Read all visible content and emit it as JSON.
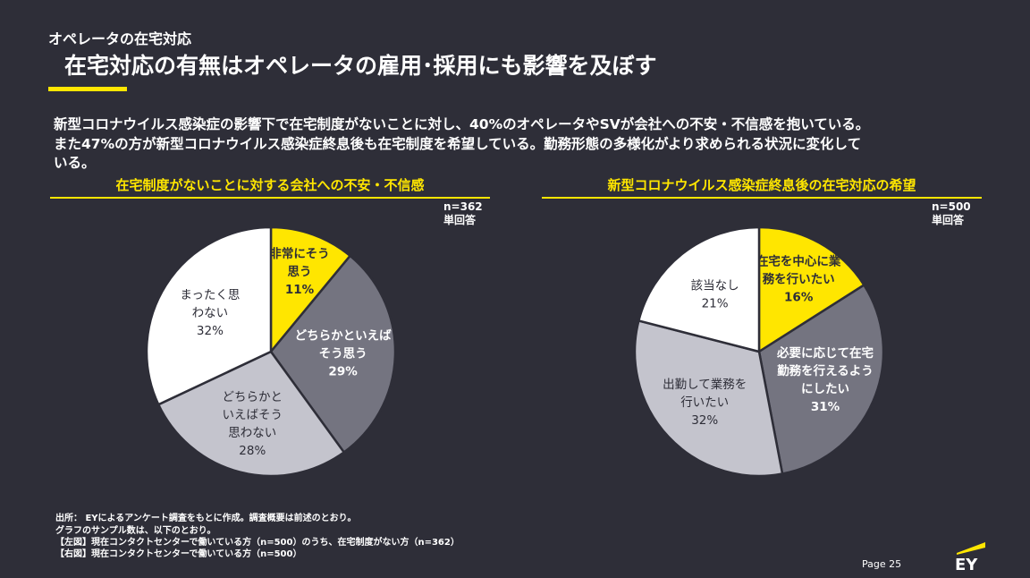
{
  "header": {
    "section_label": "オペレータの在宅対応",
    "title": "在宅対応の有無はオペレータの雇用･採用にも影響を及ぼす"
  },
  "summary": [
    "新型コロナウイルス感染症の影響下で在宅制度がないことに対し、40%のオペレータやSVが会社への不安・不信感を抱いている。",
    "また47%の方が新型コロナウイルス感染症終息後も在宅制度を希望している。勤務形態の多様化がより求められる状況に変化して",
    "いる。"
  ],
  "chart_data": [
    {
      "type": "pie",
      "title": "在宅制度がないことに対する会社への不安・不信感",
      "sample_size": "n=362",
      "answer_type": "単回答",
      "slices": [
        {
          "label_lines": [
            "非常にそう",
            "思う"
          ],
          "value": 11,
          "value_label": "11%",
          "color": "#ffe600",
          "text_color": "#2e2e38"
        },
        {
          "label_lines": [
            "どちらかといえば",
            "そう思う"
          ],
          "value": 29,
          "value_label": "29%",
          "color": "#747480",
          "text_color": "#ffffff"
        },
        {
          "label_lines": [
            "どちらかと",
            "いえばそう",
            "思わない"
          ],
          "value": 28,
          "value_label": "28%",
          "color": "#c4c4cd",
          "text_color": "#2e2e38"
        },
        {
          "label_lines": [
            "まったく思",
            "わない"
          ],
          "value": 32,
          "value_label": "32%",
          "color": "#ffffff",
          "text_color": "#2e2e38"
        }
      ]
    },
    {
      "type": "pie",
      "title": "新型コロナウイルス感染症終息後の在宅対応の希望",
      "sample_size": "n=500",
      "answer_type": "単回答",
      "slices": [
        {
          "label_lines": [
            "在宅を中心に業",
            "務を行いたい"
          ],
          "value": 16,
          "value_label": "16%",
          "color": "#ffe600",
          "text_color": "#2e2e38"
        },
        {
          "label_lines": [
            "必要に応じて在宅",
            "勤務を行えるよう",
            "にしたい"
          ],
          "value": 31,
          "value_label": "31%",
          "color": "#747480",
          "text_color": "#ffffff"
        },
        {
          "label_lines": [
            "出勤して業務を",
            "行いたい"
          ],
          "value": 32,
          "value_label": "32%",
          "color": "#c4c4cd",
          "text_color": "#2e2e38"
        },
        {
          "label_lines": [
            "該当なし"
          ],
          "value": 21,
          "value_label": "21%",
          "color": "#ffffff",
          "text_color": "#2e2e38"
        }
      ]
    }
  ],
  "footnotes": [
    "出所： EYによるアンケート調査をもとに作成。調査概要は前述のとおり。",
    "グラフのサンプル数は、以下のとおり。",
    "【左図】現在コンタクトセンターで働いている方（n=500）のうち、在宅制度がない方（n=362）",
    "【右図】現在コンタクトセンターで働いている方（n=500）"
  ],
  "footer": {
    "page": "Page 25",
    "logo": "EY",
    "accent_color": "#ffe600"
  }
}
